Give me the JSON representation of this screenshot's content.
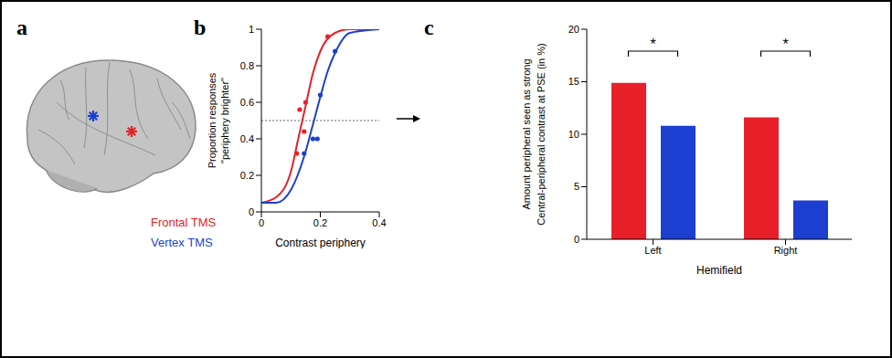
{
  "panel_a": {
    "letter": "a",
    "type": "diagram",
    "labels": [
      {
        "text": "Frontal TMS",
        "color": "#e8202a"
      },
      {
        "text": "Vertex TMS",
        "color": "#1c3fd0"
      }
    ]
  },
  "chart_data": [
    {
      "letter": "b",
      "type": "line",
      "xlabel": "Contrast periphery",
      "ylabel": "Proportion responses \"periphery brighter\"",
      "xlim": [
        0,
        0.4
      ],
      "xticks": [
        0,
        0.2,
        0.4
      ],
      "ylim": [
        0,
        1
      ],
      "yticks": [
        0,
        0.2,
        0.4,
        0.6,
        0.8,
        1
      ],
      "reference_y": 0.5,
      "series": [
        {
          "type": "line",
          "color": "#e8202a",
          "x": [
            0,
            0.05,
            0.1,
            0.125,
            0.15,
            0.175,
            0.2,
            0.25,
            0.3,
            0.4
          ],
          "values": [
            0.05,
            0.08,
            0.22,
            0.4,
            0.58,
            0.76,
            0.88,
            0.98,
            1,
            1
          ]
        },
        {
          "type": "line",
          "color": "#1c3fd0",
          "x": [
            0,
            0.05,
            0.1,
            0.15,
            0.175,
            0.2,
            0.225,
            0.25,
            0.3,
            0.4
          ],
          "values": [
            0.05,
            0.05,
            0.12,
            0.33,
            0.48,
            0.63,
            0.77,
            0.87,
            0.98,
            1
          ]
        },
        {
          "type": "scatter",
          "marker": "circle",
          "color": "#e8202a",
          "x": [
            0.12,
            0.13,
            0.145,
            0.15,
            0.225
          ],
          "values": [
            0.32,
            0.56,
            0.44,
            0.6,
            0.96
          ]
        },
        {
          "type": "scatter",
          "marker": "circle",
          "color": "#1c3fd0",
          "x": [
            0.145,
            0.175,
            0.19,
            0.2,
            0.25
          ],
          "values": [
            0.32,
            0.4,
            0.4,
            0.64,
            0.88
          ]
        }
      ]
    },
    {
      "letter": "c",
      "type": "bar",
      "categories": [
        "Left",
        "Right"
      ],
      "xlabel": "Hemifield",
      "ylabel": [
        "Amount peripheral seen as strong",
        "Central-peripheral contrast at PSE (in %)"
      ],
      "ylim": [
        0,
        20
      ],
      "yticks": [
        0,
        5,
        10,
        15,
        20
      ],
      "series": [
        {
          "color": "#e8202a",
          "values": [
            14.9,
            11.6
          ]
        },
        {
          "color": "#1c3fd0",
          "values": [
            10.8,
            3.7
          ]
        }
      ],
      "annotations": [
        {
          "text": "*",
          "category": "Left"
        },
        {
          "text": "*",
          "category": "Right"
        }
      ]
    }
  ]
}
